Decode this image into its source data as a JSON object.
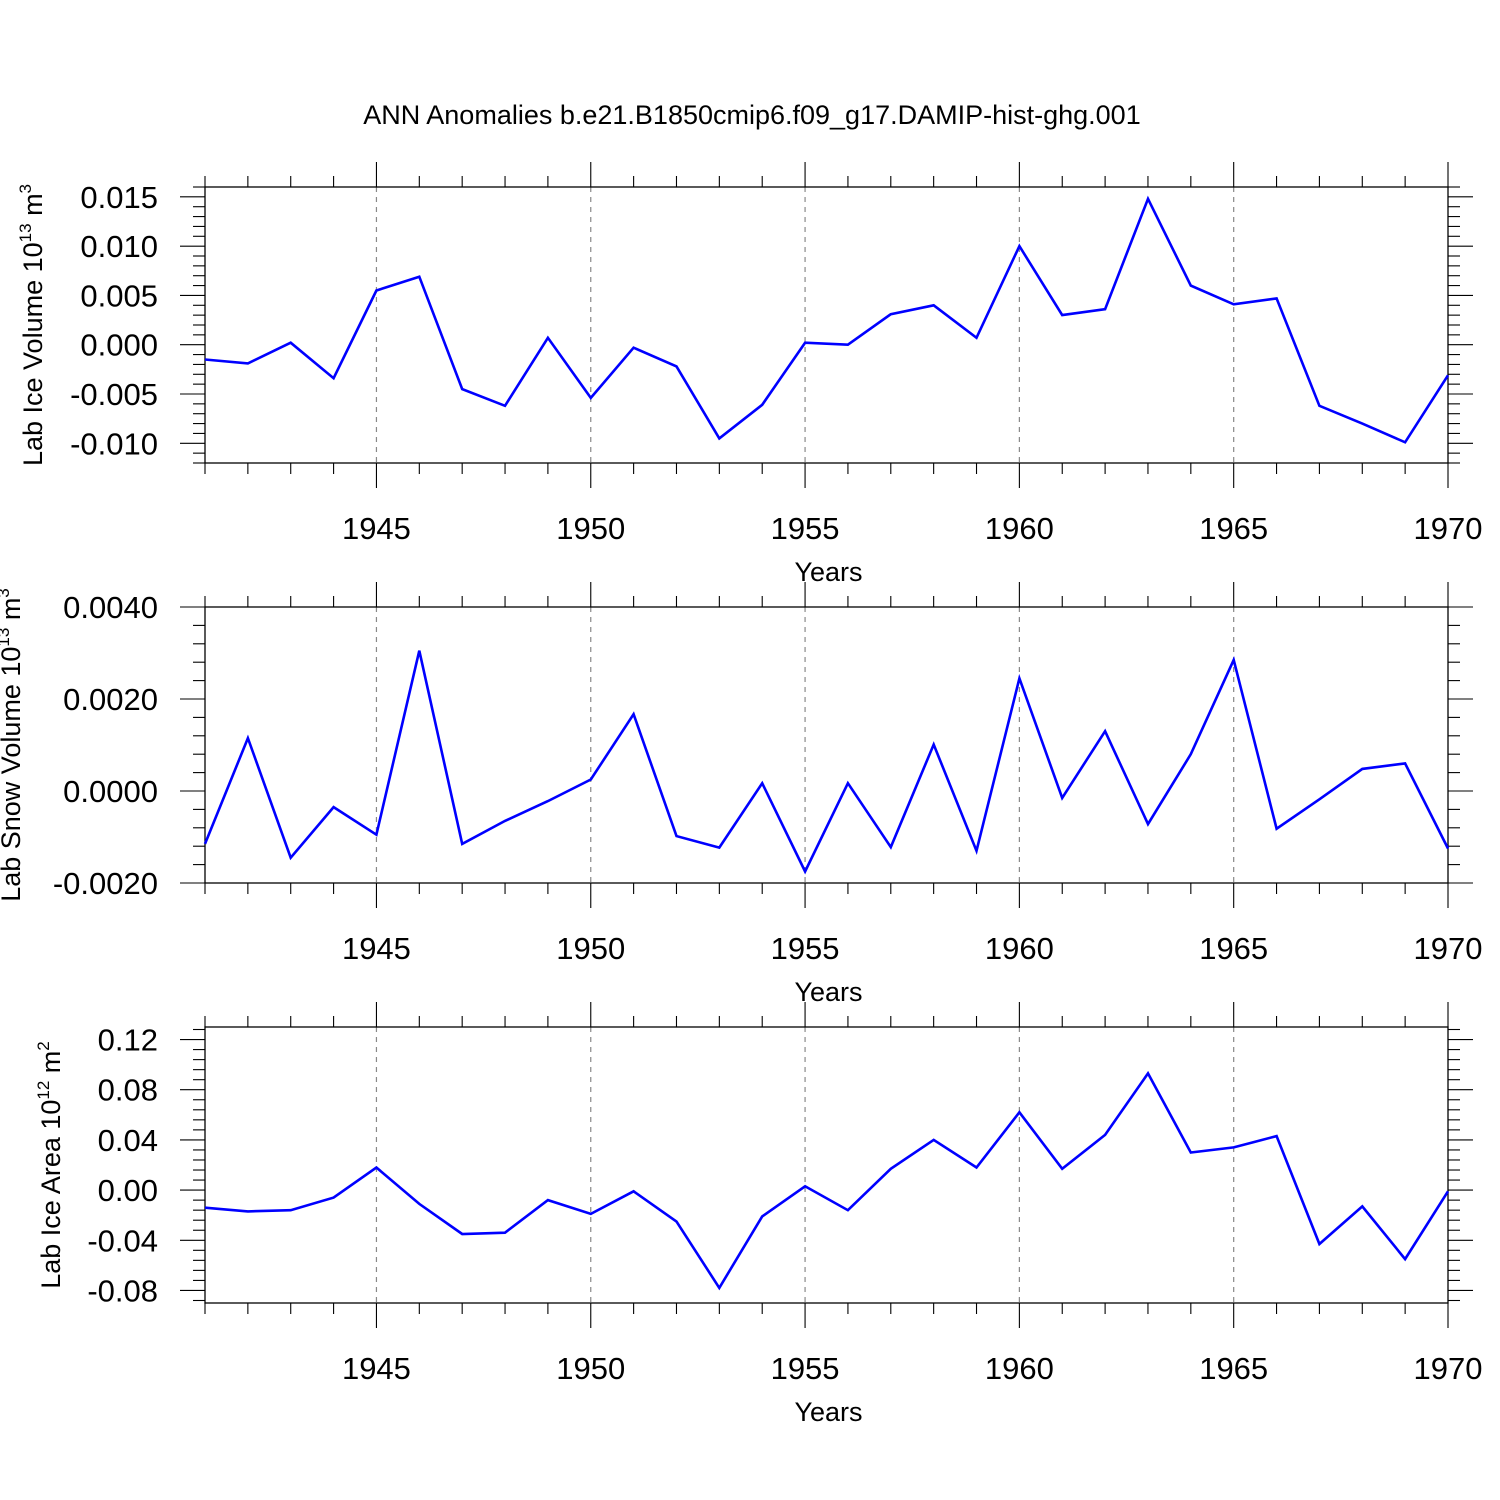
{
  "figure_title": "ANN Anomalies b.e21.B1850cmip6.f09_g17.DAMIP-hist-ghg.001",
  "colors": {
    "line": "#0000ff",
    "axis": "#000000",
    "grid": "#888888"
  },
  "chart_data": [
    {
      "type": "line",
      "title": "",
      "xlabel": "Years",
      "ylabel_main": "Lab Ice Volume 10",
      "ylabel_exp": "13",
      "ylabel_unit": " m",
      "ylabel_unit_exp": "3",
      "xlim": [
        1941,
        1970
      ],
      "ylim": [
        -0.012,
        0.016
      ],
      "x_ticks": [
        1945,
        1950,
        1955,
        1960,
        1965,
        1970
      ],
      "x_tick_labels": [
        "1945",
        "1950",
        "1955",
        "1960",
        "1965",
        "1970"
      ],
      "y_ticks": [
        -0.01,
        -0.005,
        0.0,
        0.005,
        0.01,
        0.015
      ],
      "y_tick_labels": [
        "-0.010",
        "-0.005",
        "0.000",
        "0.005",
        "0.010",
        "0.015"
      ],
      "grid": "vertical dashed at major x ticks",
      "x": [
        1941,
        1942,
        1943,
        1944,
        1945,
        1946,
        1947,
        1948,
        1949,
        1950,
        1951,
        1952,
        1953,
        1954,
        1955,
        1956,
        1957,
        1958,
        1959,
        1960,
        1961,
        1962,
        1963,
        1964,
        1965,
        1966,
        1967,
        1968,
        1969,
        1970
      ],
      "series": [
        {
          "values": [
            -0.0015,
            -0.0019,
            0.0002,
            -0.0034,
            0.0055,
            0.0069,
            -0.0045,
            -0.0062,
            0.0007,
            -0.0054,
            -0.0003,
            -0.0022,
            -0.0095,
            -0.0061,
            0.0002,
            0.0,
            0.0031,
            0.004,
            0.0007,
            0.01,
            0.003,
            0.0036,
            0.0148,
            0.006,
            0.0041,
            0.0047,
            -0.0062,
            -0.008,
            -0.0099,
            -0.0031
          ]
        }
      ]
    },
    {
      "type": "line",
      "title": "",
      "xlabel": "Years",
      "ylabel_main": "Lab Snow Volume 10",
      "ylabel_exp": "13",
      "ylabel_unit": " m",
      "ylabel_unit_exp": "3",
      "xlim": [
        1941,
        1970
      ],
      "ylim": [
        -0.002,
        0.004
      ],
      "x_ticks": [
        1945,
        1950,
        1955,
        1960,
        1965,
        1970
      ],
      "x_tick_labels": [
        "1945",
        "1950",
        "1955",
        "1960",
        "1965",
        "1970"
      ],
      "y_ticks": [
        -0.002,
        0.0,
        0.002,
        0.004
      ],
      "y_tick_labels": [
        "-0.0020",
        "0.0000",
        "0.0020",
        "0.0040"
      ],
      "grid": "vertical dashed at major x ticks",
      "x": [
        1941,
        1942,
        1943,
        1944,
        1945,
        1946,
        1947,
        1948,
        1949,
        1950,
        1951,
        1952,
        1953,
        1954,
        1955,
        1956,
        1957,
        1958,
        1959,
        1960,
        1961,
        1962,
        1963,
        1964,
        1965,
        1966,
        1967,
        1968,
        1969,
        1970
      ],
      "series": [
        {
          "values": [
            -0.00115,
            0.00115,
            -0.00145,
            -0.00035,
            -0.00095,
            0.00305,
            -0.00115,
            -0.00065,
            -0.00022,
            0.00025,
            0.00167,
            -0.00098,
            -0.00123,
            0.00017,
            -0.00175,
            0.00017,
            -0.00122,
            0.00101,
            -0.0013,
            0.00245,
            -0.00015,
            0.0013,
            -0.00072,
            0.0008,
            0.00285,
            -0.00082,
            -0.00018,
            0.00048,
            0.0006,
            -0.00125
          ]
        }
      ]
    },
    {
      "type": "line",
      "title": "",
      "xlabel": "Years",
      "ylabel_main": "Lab Ice Area 10",
      "ylabel_exp": "12",
      "ylabel_unit": " m",
      "ylabel_unit_exp": "2",
      "xlim": [
        1941,
        1970
      ],
      "ylim": [
        -0.09,
        0.13
      ],
      "x_ticks": [
        1945,
        1950,
        1955,
        1960,
        1965,
        1970
      ],
      "x_tick_labels": [
        "1945",
        "1950",
        "1955",
        "1960",
        "1965",
        "1970"
      ],
      "y_ticks": [
        -0.08,
        -0.04,
        0.0,
        0.04,
        0.08,
        0.12
      ],
      "y_tick_labels": [
        "-0.08",
        "-0.04",
        "0.00",
        "0.04",
        "0.08",
        "0.12"
      ],
      "grid": "vertical dashed at major x ticks",
      "x": [
        1941,
        1942,
        1943,
        1944,
        1945,
        1946,
        1947,
        1948,
        1949,
        1950,
        1951,
        1952,
        1953,
        1954,
        1955,
        1956,
        1957,
        1958,
        1959,
        1960,
        1961,
        1962,
        1963,
        1964,
        1965,
        1966,
        1967,
        1968,
        1969,
        1970
      ],
      "series": [
        {
          "values": [
            -0.014,
            -0.017,
            -0.016,
            -0.006,
            0.018,
            -0.011,
            -0.035,
            -0.034,
            -0.008,
            -0.019,
            -0.001,
            -0.025,
            -0.078,
            -0.021,
            0.003,
            -0.016,
            0.017,
            0.04,
            0.018,
            0.062,
            0.017,
            0.044,
            0.093,
            0.03,
            0.034,
            0.043,
            -0.043,
            -0.013,
            -0.055,
            -0.001
          ]
        }
      ]
    }
  ]
}
